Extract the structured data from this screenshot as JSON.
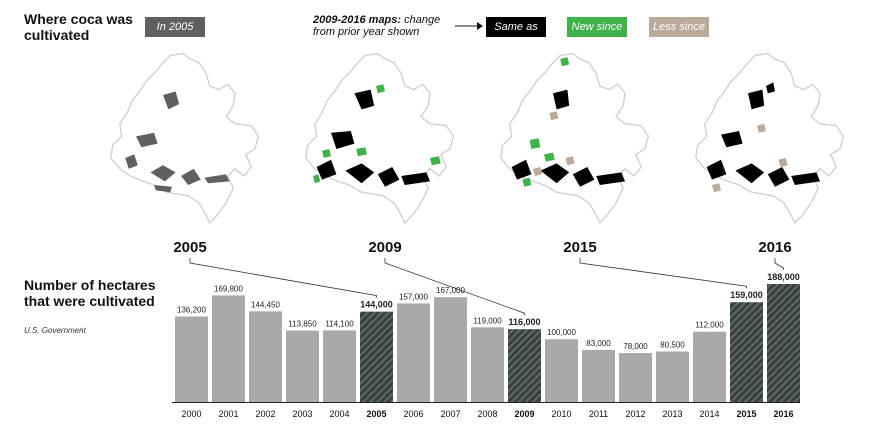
{
  "maps": {
    "title": "Where coca was cultivated",
    "legend_2005": "In 2005",
    "note_bold": "2009-2016 maps:",
    "note_rest": "change from prior year shown",
    "legend_same": "Same as",
    "legend_new": "New since",
    "legend_less": "Less since",
    "years": [
      "2005",
      "2009",
      "2015",
      "2016"
    ]
  },
  "chart_title": "Number of hectares that were cultivated",
  "source": "U.S. Government",
  "colors": {
    "bar": "#a9a9a9",
    "highlight": "#3e4a44",
    "same": "#000000",
    "new": "#3fb24a",
    "less": "#b9aa9a",
    "in2005": "#606060"
  },
  "chart_data": {
    "type": "bar",
    "categories": [
      "2000",
      "2001",
      "2002",
      "2003",
      "2004",
      "2005",
      "2006",
      "2007",
      "2008",
      "2009",
      "2010",
      "2011",
      "2012",
      "2013",
      "2014",
      "2015",
      "2016"
    ],
    "values": [
      136200,
      169800,
      144450,
      113850,
      114100,
      144000,
      157000,
      167000,
      119000,
      116000,
      100000,
      83000,
      78000,
      80500,
      112000,
      159000,
      188000
    ],
    "labels": [
      "136,200",
      "169,800",
      "144,450",
      "113,850",
      "114,100",
      "144,000",
      "157,000",
      "167,000",
      "119,000",
      "116,000",
      "100,000",
      "83,000",
      "78,000",
      "80,500",
      "112,000",
      "159,000",
      "188,000"
    ],
    "highlighted": [
      "2005",
      "2009",
      "2015",
      "2016"
    ],
    "title": "Number of hectares that were cultivated",
    "xlabel": "",
    "ylabel": "",
    "ylim": [
      0,
      188000
    ]
  }
}
